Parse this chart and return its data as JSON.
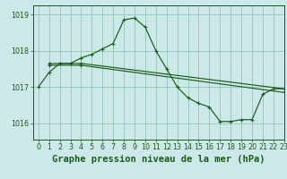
{
  "title": "Graphe pression niveau de la mer (hPa)",
  "background_color": "#cce8e8",
  "grid_color": "#99ccbb",
  "line_color": "#1a5c1a",
  "xlim": [
    -0.5,
    23
  ],
  "ylim": [
    1015.55,
    1019.25
  ],
  "yticks": [
    1016,
    1017,
    1018,
    1019
  ],
  "xticks": [
    0,
    1,
    2,
    3,
    4,
    5,
    6,
    7,
    8,
    9,
    10,
    11,
    12,
    13,
    14,
    15,
    16,
    17,
    18,
    19,
    20,
    21,
    22,
    23
  ],
  "series1_x": [
    0,
    1,
    2,
    3,
    4,
    5,
    6,
    7,
    8,
    9,
    10,
    11,
    12,
    13,
    14,
    15,
    16,
    17,
    18,
    19,
    20,
    21,
    22,
    23
  ],
  "series1_y": [
    1017.0,
    1017.4,
    1017.65,
    1017.65,
    1017.8,
    1017.9,
    1018.05,
    1018.2,
    1018.85,
    1018.9,
    1018.65,
    1018.0,
    1017.5,
    1017.0,
    1016.7,
    1016.55,
    1016.45,
    1016.05,
    1016.05,
    1016.1,
    1016.1,
    1016.8,
    1016.95,
    1016.95
  ],
  "series2_x": [
    1,
    4,
    23
  ],
  "series2_y": [
    1017.65,
    1017.65,
    1016.95
  ],
  "series3_x": [
    1,
    4,
    23
  ],
  "series3_y": [
    1017.6,
    1017.6,
    1016.85
  ],
  "tick_fontsize": 5.8,
  "xlabel_fontsize": 7.5,
  "linewidth": 0.85,
  "markersize": 3.0
}
